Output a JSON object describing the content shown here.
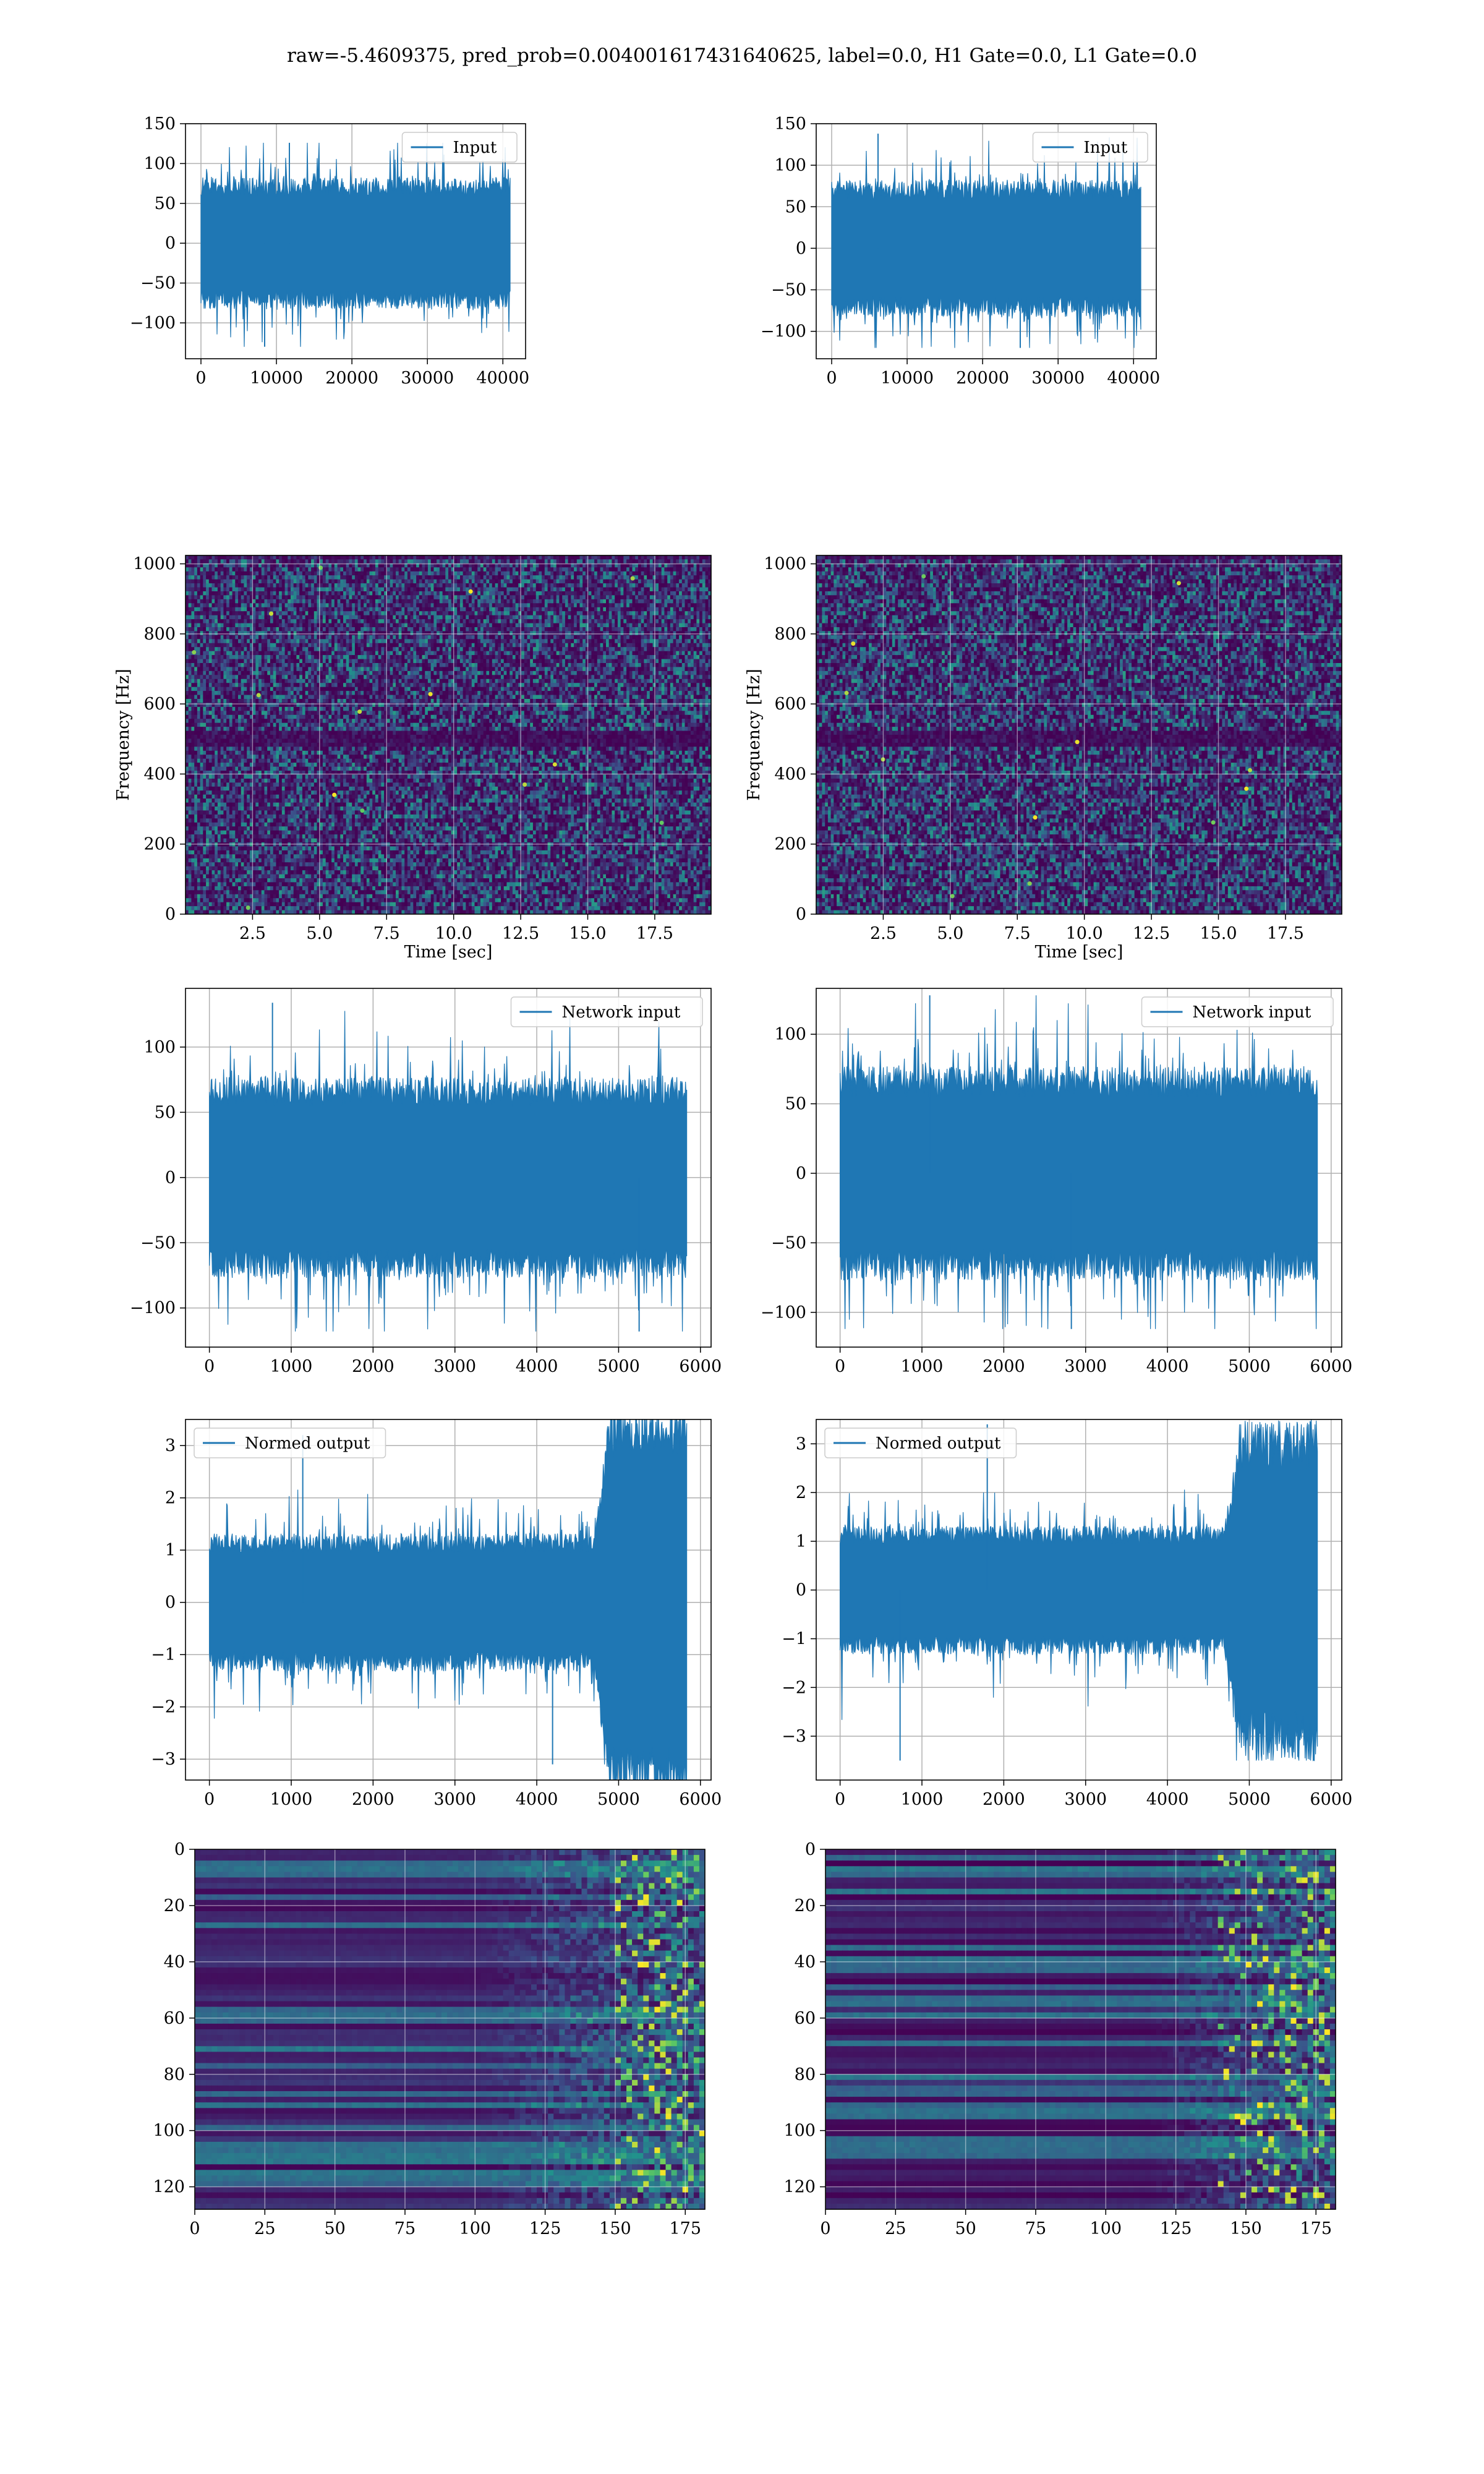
{
  "figure": {
    "suptitle": "raw=-5.4609375, pred_prob=0.004001617431640625, label=0.0, H1 Gate=0.0, L1 Gate=0.0"
  },
  "colors": {
    "line": "#1f77b4",
    "viridis": [
      "#440154",
      "#3b528b",
      "#21918c",
      "#5ec962",
      "#fde725"
    ]
  },
  "chart_data": [
    {
      "id": "input-left",
      "type": "line",
      "title": "",
      "xlabel": "",
      "ylabel": "",
      "xlim": [
        -2048,
        43008
      ],
      "ylim": [
        -145,
        150
      ],
      "xticks": [
        0,
        10000,
        20000,
        30000,
        40000
      ],
      "xticklabels": [
        "0",
        "10000",
        "20000",
        "30000",
        "40000"
      ],
      "yticks": [
        -100,
        -50,
        0,
        50,
        100,
        150
      ],
      "yticklabels": [
        "−100",
        "−50",
        "0",
        "50",
        "100",
        "150"
      ],
      "grid": true,
      "legend_position": "upper right",
      "series": [
        {
          "name": "Input",
          "x_range": [
            0,
            40960
          ],
          "envelope_typical": [
            -75,
            75
          ],
          "peak_min": -130,
          "peak_max": 126,
          "rms": 32
        }
      ]
    },
    {
      "id": "input-right",
      "type": "line",
      "title": "",
      "xlabel": "",
      "ylabel": "",
      "xlim": [
        -2048,
        43008
      ],
      "ylim": [
        -133,
        150
      ],
      "xticks": [
        0,
        10000,
        20000,
        30000,
        40000
      ],
      "xticklabels": [
        "0",
        "10000",
        "20000",
        "30000",
        "40000"
      ],
      "yticks": [
        -100,
        -50,
        0,
        50,
        100,
        150
      ],
      "yticklabels": [
        "−100",
        "−50",
        "0",
        "50",
        "100",
        "150"
      ],
      "grid": true,
      "legend_position": "upper right",
      "series": [
        {
          "name": "Input",
          "x_range": [
            0,
            40960
          ],
          "envelope_typical": [
            -75,
            75
          ],
          "peak_min": -120,
          "peak_max": 138,
          "rms": 31
        }
      ]
    },
    {
      "id": "spectrogram-left",
      "type": "heatmap",
      "title": "",
      "xlabel": "Time [sec]",
      "ylabel": "Frequency [Hz]",
      "xlim": [
        0,
        19.6
      ],
      "ylim": [
        0,
        1024
      ],
      "xticks": [
        2.5,
        5.0,
        7.5,
        10.0,
        12.5,
        15.0,
        17.5
      ],
      "xticklabels": [
        "2.5",
        "5.0",
        "7.5",
        "10.0",
        "12.5",
        "15.0",
        "17.5"
      ],
      "yticks": [
        0,
        200,
        400,
        600,
        800,
        1000
      ],
      "yticklabels": [
        "0",
        "200",
        "400",
        "600",
        "800",
        "1000"
      ],
      "grid": true,
      "colormap": "viridis",
      "features": {
        "dark_band_hz": [
          480,
          520
        ],
        "bright_spots": 14
      }
    },
    {
      "id": "spectrogram-right",
      "type": "heatmap",
      "title": "",
      "xlabel": "Time [sec]",
      "ylabel": "Frequency [Hz]",
      "xlim": [
        0,
        19.6
      ],
      "ylim": [
        0,
        1024
      ],
      "xticks": [
        2.5,
        5.0,
        7.5,
        10.0,
        12.5,
        15.0,
        17.5
      ],
      "xticklabels": [
        "2.5",
        "5.0",
        "7.5",
        "10.0",
        "12.5",
        "15.0",
        "17.5"
      ],
      "yticks": [
        0,
        200,
        400,
        600,
        800,
        1000
      ],
      "yticklabels": [
        "0",
        "200",
        "400",
        "600",
        "800",
        "1000"
      ],
      "grid": true,
      "colormap": "viridis",
      "features": {
        "dark_band_hz": [
          480,
          520
        ],
        "bright_spots": 12
      }
    },
    {
      "id": "network-input-left",
      "type": "line",
      "title": "",
      "xlabel": "",
      "ylabel": "",
      "xlim": [
        -292,
        6130
      ],
      "ylim": [
        -130,
        145
      ],
      "xticks": [
        0,
        1000,
        2000,
        3000,
        4000,
        5000,
        6000
      ],
      "xticklabels": [
        "0",
        "1000",
        "2000",
        "3000",
        "4000",
        "5000",
        "6000"
      ],
      "yticks": [
        -100,
        -50,
        0,
        50,
        100
      ],
      "yticklabels": [
        "−100",
        "−50",
        "0",
        "50",
        "100"
      ],
      "grid": true,
      "legend_position": "upper right",
      "series": [
        {
          "name": "Network input",
          "x_range": [
            0,
            5836
          ],
          "envelope_typical": [
            -70,
            70
          ],
          "peak_min": -118,
          "peak_max": 134,
          "rms": 28
        }
      ]
    },
    {
      "id": "network-input-right",
      "type": "line",
      "title": "",
      "xlabel": "",
      "ylabel": "",
      "xlim": [
        -292,
        6130
      ],
      "ylim": [
        -125,
        133
      ],
      "xticks": [
        0,
        1000,
        2000,
        3000,
        4000,
        5000,
        6000
      ],
      "xticklabels": [
        "0",
        "1000",
        "2000",
        "3000",
        "4000",
        "5000",
        "6000"
      ],
      "yticks": [
        -100,
        -50,
        0,
        50,
        100
      ],
      "yticklabels": [
        "−100",
        "−50",
        "0",
        "50",
        "100"
      ],
      "grid": true,
      "legend_position": "upper right",
      "series": [
        {
          "name": "Network input",
          "x_range": [
            0,
            5836
          ],
          "envelope_typical": [
            -70,
            70
          ],
          "peak_min": -112,
          "peak_max": 128,
          "rms": 27
        }
      ]
    },
    {
      "id": "normed-output-left",
      "type": "line",
      "title": "",
      "xlabel": "",
      "ylabel": "",
      "xlim": [
        -292,
        6130
      ],
      "ylim": [
        -3.4,
        3.5
      ],
      "xticks": [
        0,
        1000,
        2000,
        3000,
        4000,
        5000,
        6000
      ],
      "xticklabels": [
        "0",
        "1000",
        "2000",
        "3000",
        "4000",
        "5000",
        "6000"
      ],
      "yticks": [
        -3,
        -2,
        -1,
        0,
        1,
        2,
        3
      ],
      "yticklabels": [
        "−3",
        "−2",
        "−1",
        "0",
        "1",
        "2",
        "3"
      ],
      "grid": true,
      "legend_position": "upper left",
      "series": [
        {
          "name": "Normed output",
          "x_range": [
            0,
            5836
          ],
          "envelope_typical": [
            -1.2,
            1.2
          ],
          "burst_start_x": 4700,
          "burst_amplitude": 2.6,
          "peak_min": -3.1,
          "peak_max": 3.2,
          "rms": 0.45
        }
      ]
    },
    {
      "id": "normed-output-right",
      "type": "line",
      "title": "",
      "xlabel": "",
      "ylabel": "",
      "xlim": [
        -292,
        6130
      ],
      "ylim": [
        -3.9,
        3.5
      ],
      "xticks": [
        0,
        1000,
        2000,
        3000,
        4000,
        5000,
        6000
      ],
      "xticklabels": [
        "0",
        "1000",
        "2000",
        "3000",
        "4000",
        "5000",
        "6000"
      ],
      "yticks": [
        -3,
        -2,
        -1,
        0,
        1,
        2,
        3
      ],
      "yticklabels": [
        "−3",
        "−2",
        "−1",
        "0",
        "1",
        "2",
        "3"
      ],
      "grid": true,
      "legend_position": "upper left",
      "series": [
        {
          "name": "Normed output",
          "x_range": [
            0,
            5836
          ],
          "envelope_typical": [
            -1.2,
            1.2
          ],
          "burst_start_x": 4700,
          "burst_amplitude": 2.2,
          "peak_min": -3.5,
          "peak_max": 3.4,
          "rms": 0.42
        }
      ]
    },
    {
      "id": "feature-map-left",
      "type": "heatmap",
      "title": "",
      "xlabel": "",
      "ylabel": "",
      "xlim": [
        0,
        182
      ],
      "ylim": [
        128,
        0
      ],
      "xticks": [
        0,
        25,
        50,
        75,
        100,
        125,
        150,
        175
      ],
      "xticklabels": [
        "0",
        "25",
        "50",
        "75",
        "100",
        "125",
        "150",
        "175"
      ],
      "yticks": [
        0,
        20,
        40,
        60,
        80,
        100,
        120
      ],
      "yticklabels": [
        "0",
        "20",
        "40",
        "60",
        "80",
        "100",
        "120"
      ],
      "grid": true,
      "colormap": "viridis",
      "features": {
        "rows": 128,
        "cols": 182,
        "activity_onset_col": 100,
        "high_activity_col": 150
      }
    },
    {
      "id": "feature-map-right",
      "type": "heatmap",
      "title": "",
      "xlabel": "",
      "ylabel": "",
      "xlim": [
        0,
        182
      ],
      "ylim": [
        128,
        0
      ],
      "xticks": [
        0,
        25,
        50,
        75,
        100,
        125,
        150,
        175
      ],
      "xticklabels": [
        "0",
        "25",
        "50",
        "75",
        "100",
        "125",
        "150",
        "175"
      ],
      "yticks": [
        0,
        20,
        40,
        60,
        80,
        100,
        120
      ],
      "yticklabels": [
        "0",
        "20",
        "40",
        "60",
        "80",
        "100",
        "120"
      ],
      "grid": true,
      "colormap": "viridis",
      "features": {
        "rows": 128,
        "cols": 182,
        "activity_onset_col": 115,
        "high_activity_col": 140
      }
    }
  ]
}
